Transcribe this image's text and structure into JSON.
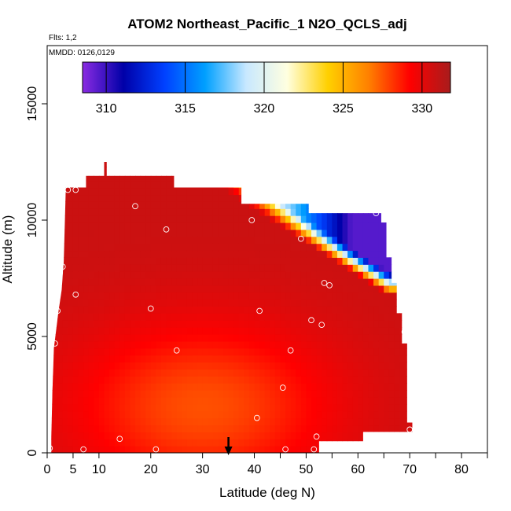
{
  "chart_data": {
    "type": "heatmap",
    "title": "ATOM2 Northeast_Pacific_1 N2O_QCLS_adj",
    "flights_label": "Flts: 1,2",
    "dates_label": "MMDD: 0126,0129",
    "xlabel": "Latitude (deg N)",
    "ylabel": "Altitude (m)",
    "xlim": [
      0,
      85
    ],
    "ylim": [
      0,
      17500
    ],
    "x_ticks": [
      0,
      5,
      10,
      20,
      30,
      40,
      50,
      60,
      70,
      80
    ],
    "x_minor_ticks": [
      45,
      55,
      65,
      75,
      85
    ],
    "y_ticks": [
      0,
      5000,
      10000,
      15000
    ],
    "colorbar": {
      "min": 308.5,
      "max": 331.8,
      "ticks": [
        310,
        315,
        320,
        325,
        330
      ],
      "colors": [
        "#8a2be2",
        "#0000a8",
        "#0040ff",
        "#00a0ff",
        "#c8e8ff",
        "#ffffe0",
        "#ffd000",
        "#ff8000",
        "#ff0000",
        "#a81c1c"
      ]
    },
    "marker_latitude": 35,
    "observations": [
      {
        "lat": 0.5,
        "alt": 200
      },
      {
        "lat": 1.5,
        "alt": 4700
      },
      {
        "lat": 2,
        "alt": 6100
      },
      {
        "lat": 3,
        "alt": 8000
      },
      {
        "lat": 4,
        "alt": 11300
      },
      {
        "lat": 5.5,
        "alt": 11300
      },
      {
        "lat": 5.5,
        "alt": 6800
      },
      {
        "lat": 7,
        "alt": 150
      },
      {
        "lat": 14,
        "alt": 600
      },
      {
        "lat": 17,
        "alt": 10600
      },
      {
        "lat": 20,
        "alt": 6200
      },
      {
        "lat": 21,
        "alt": 150
      },
      {
        "lat": 23,
        "alt": 9600
      },
      {
        "lat": 25,
        "alt": 4400
      },
      {
        "lat": 39.5,
        "alt": 10000
      },
      {
        "lat": 40.5,
        "alt": 1500
      },
      {
        "lat": 41,
        "alt": 6100
      },
      {
        "lat": 45.5,
        "alt": 2800
      },
      {
        "lat": 46,
        "alt": 150
      },
      {
        "lat": 47,
        "alt": 4400
      },
      {
        "lat": 49,
        "alt": 9200
      },
      {
        "lat": 51,
        "alt": 5700
      },
      {
        "lat": 51.5,
        "alt": 150
      },
      {
        "lat": 52,
        "alt": 700
      },
      {
        "lat": 53,
        "alt": 5500
      },
      {
        "lat": 53.5,
        "alt": 7300
      },
      {
        "lat": 54.5,
        "alt": 7200
      },
      {
        "lat": 63.5,
        "alt": 10300
      },
      {
        "lat": 69,
        "alt": 5200
      },
      {
        "lat": 70,
        "alt": 1000
      }
    ],
    "upper_boundary": [
      {
        "lat": 0.8,
        "alt": 700
      },
      {
        "lat": 1.0,
        "alt": 2500
      },
      {
        "lat": 1.3,
        "alt": 4500
      },
      {
        "lat": 2.2,
        "alt": 6100
      },
      {
        "lat": 2.8,
        "alt": 7000
      },
      {
        "lat": 3.2,
        "alt": 8200
      },
      {
        "lat": 3.6,
        "alt": 11400
      },
      {
        "lat": 7.5,
        "alt": 11400
      },
      {
        "lat": 7.5,
        "alt": 11900
      },
      {
        "lat": 11,
        "alt": 11900
      },
      {
        "lat": 11,
        "alt": 12500
      },
      {
        "lat": 11.5,
        "alt": 12500
      },
      {
        "lat": 11.5,
        "alt": 11900
      },
      {
        "lat": 24.5,
        "alt": 11900
      },
      {
        "lat": 24.5,
        "alt": 11400
      },
      {
        "lat": 37.5,
        "alt": 11400
      },
      {
        "lat": 37.5,
        "alt": 10700
      },
      {
        "lat": 50.5,
        "alt": 10700
      },
      {
        "lat": 50.5,
        "alt": 10300
      },
      {
        "lat": 64.5,
        "alt": 10300
      },
      {
        "lat": 64.5,
        "alt": 9900
      },
      {
        "lat": 65.5,
        "alt": 9900
      },
      {
        "lat": 65.5,
        "alt": 8400
      },
      {
        "lat": 66.5,
        "alt": 8400
      },
      {
        "lat": 66.5,
        "alt": 7300
      },
      {
        "lat": 67.5,
        "alt": 7300
      },
      {
        "lat": 67.5,
        "alt": 6000
      },
      {
        "lat": 68.5,
        "alt": 6000
      },
      {
        "lat": 68.5,
        "alt": 4700
      },
      {
        "lat": 69.5,
        "alt": 4700
      },
      {
        "lat": 69.5,
        "alt": 1300
      },
      {
        "lat": 70.5,
        "alt": 1300
      },
      {
        "lat": 70.5,
        "alt": 900
      },
      {
        "lat": 61,
        "alt": 900
      },
      {
        "lat": 61,
        "alt": 500
      },
      {
        "lat": 52.5,
        "alt": 500
      },
      {
        "lat": 52.5,
        "alt": 0
      }
    ],
    "field_model": {
      "background": 330.8,
      "core": {
        "lat": 30,
        "alt": 2000,
        "value": 327.6,
        "sigma_lat": 18,
        "sigma_alt": 2600
      },
      "transition": {
        "lat_start": 30,
        "lat_end": 66,
        "alt_start": 11900,
        "alt_end": 6800,
        "width": 950,
        "min_value": 309.5
      }
    }
  }
}
